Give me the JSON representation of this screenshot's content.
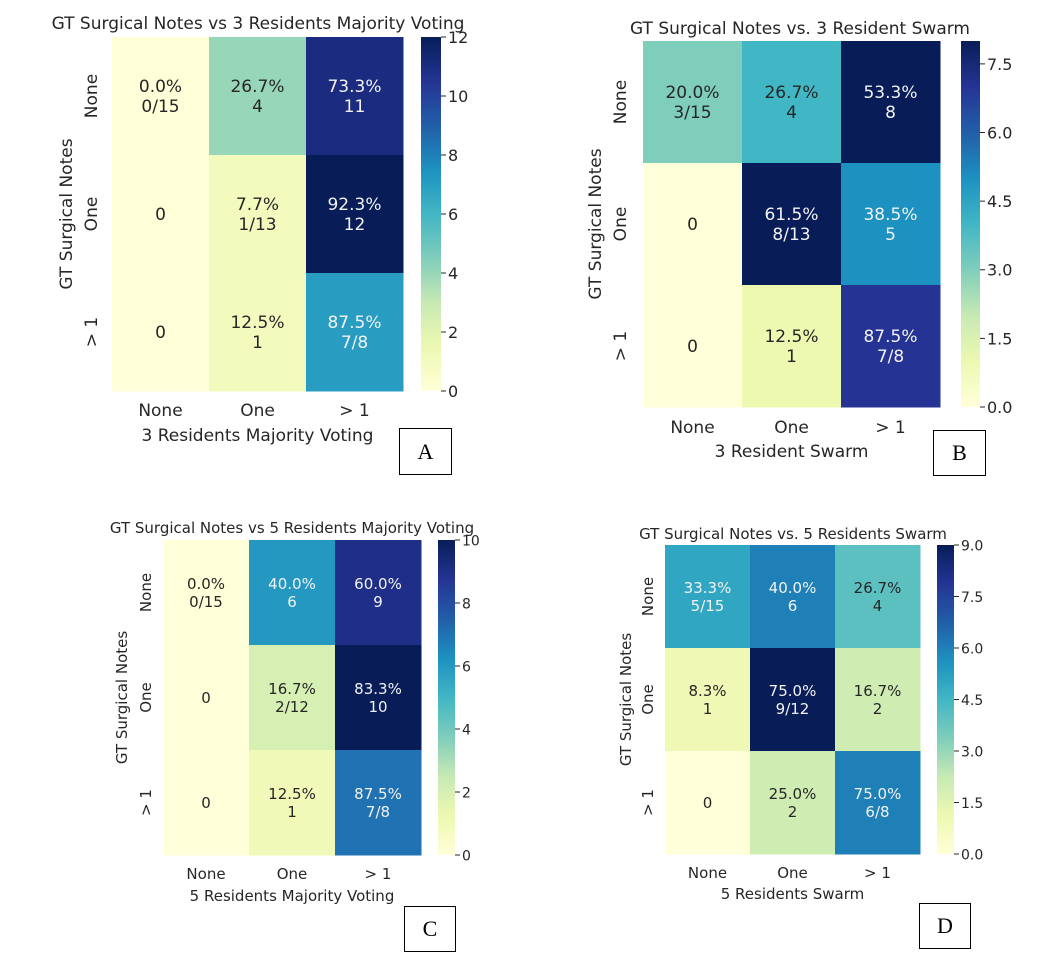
{
  "chart_data": [
    {
      "type": "heatmap",
      "panel": "A",
      "title": "GT Surgical Notes vs 3 Residents Majority Voting",
      "xlabel": "3 Residents Majority Voting",
      "ylabel": "GT Surgical Notes",
      "x_categories": [
        "None",
        "One",
        "> 1"
      ],
      "y_categories": [
        "None",
        "One",
        "> 1"
      ],
      "values": [
        [
          0,
          4,
          11
        ],
        [
          0,
          1,
          12
        ],
        [
          0,
          1,
          7
        ]
      ],
      "annotations": [
        [
          "0.0%\n0/15",
          "26.7%\n4",
          "73.3%\n11"
        ],
        [
          "0",
          "7.7%\n1/13",
          "92.3%\n12"
        ],
        [
          "0",
          "12.5%\n1",
          "87.5%\n7/8"
        ]
      ],
      "colorbar": {
        "range": [
          0,
          12
        ],
        "ticks": [
          "0",
          "2",
          "4",
          "6",
          "8",
          "10",
          "12"
        ],
        "tick_values": [
          0,
          2,
          4,
          6,
          8,
          10,
          12
        ]
      },
      "colormap": "YlGnBu"
    },
    {
      "type": "heatmap",
      "panel": "B",
      "title": "GT Surgical Notes vs. 3 Resident Swarm",
      "xlabel": "3 Resident Swarm",
      "ylabel": "GT Surgical Notes",
      "x_categories": [
        "None",
        "One",
        "> 1"
      ],
      "y_categories": [
        "None",
        "One",
        "> 1"
      ],
      "values": [
        [
          3,
          4,
          8
        ],
        [
          0,
          8,
          5
        ],
        [
          0,
          1,
          7
        ]
      ],
      "annotations": [
        [
          "20.0%\n3/15",
          "26.7%\n4",
          "53.3%\n8"
        ],
        [
          "0",
          "61.5%\n8/13",
          "38.5%\n5"
        ],
        [
          "0",
          "12.5%\n1",
          "87.5%\n7/8"
        ]
      ],
      "colorbar": {
        "range": [
          0,
          8
        ],
        "ticks": [
          "0.0",
          "1.5",
          "3.0",
          "4.5",
          "6.0",
          "7.5"
        ],
        "tick_values": [
          0,
          1.5,
          3,
          4.5,
          6,
          7.5
        ]
      },
      "colormap": "YlGnBu"
    },
    {
      "type": "heatmap",
      "panel": "C",
      "title": "GT Surgical Notes vs 5 Residents Majority Voting",
      "xlabel": "5 Residents Majority Voting",
      "ylabel": "GT Surgical Notes",
      "x_categories": [
        "None",
        "One",
        "> 1"
      ],
      "y_categories": [
        "None",
        "One",
        "> 1"
      ],
      "values": [
        [
          0,
          6,
          9
        ],
        [
          0,
          2,
          10
        ],
        [
          0,
          1,
          7
        ]
      ],
      "annotations": [
        [
          "0.0%\n0/15",
          "40.0%\n6",
          "60.0%\n9"
        ],
        [
          "0",
          "16.7%\n2/12",
          "83.3%\n10"
        ],
        [
          "0",
          "12.5%\n1",
          "87.5%\n7/8"
        ]
      ],
      "colorbar": {
        "range": [
          0,
          10
        ],
        "ticks": [
          "0",
          "2",
          "4",
          "6",
          "8",
          "10"
        ],
        "tick_values": [
          0,
          2,
          4,
          6,
          8,
          10
        ]
      },
      "colormap": "YlGnBu"
    },
    {
      "type": "heatmap",
      "panel": "D",
      "title": "GT Surgical Notes vs. 5 Residents Swarm",
      "xlabel": "5 Residents Swarm",
      "ylabel": "GT Surgical Notes",
      "x_categories": [
        "None",
        "One",
        "> 1"
      ],
      "y_categories": [
        "None",
        "One",
        "> 1"
      ],
      "values": [
        [
          5,
          6,
          4
        ],
        [
          1,
          9,
          2
        ],
        [
          0,
          2,
          6
        ]
      ],
      "annotations": [
        [
          "33.3%\n5/15",
          "40.0%\n6",
          "26.7%\n4"
        ],
        [
          "8.3%\n1",
          "75.0%\n9/12",
          "16.7%\n2"
        ],
        [
          "0",
          "25.0%\n2",
          "75.0%\n6/8"
        ]
      ],
      "colorbar": {
        "range": [
          0,
          9
        ],
        "ticks": [
          "0.0",
          "1.5",
          "3.0",
          "4.5",
          "6.0",
          "7.5",
          "9.0"
        ],
        "tick_values": [
          0,
          1.5,
          3,
          4.5,
          6,
          7.5,
          9
        ]
      },
      "colormap": "YlGnBu"
    }
  ],
  "colormap_stops": [
    "#ffffd9",
    "#edf8b1",
    "#c7e9b4",
    "#7fcdbb",
    "#41b6c4",
    "#1d91c0",
    "#225ea8",
    "#253494",
    "#081d58"
  ]
}
